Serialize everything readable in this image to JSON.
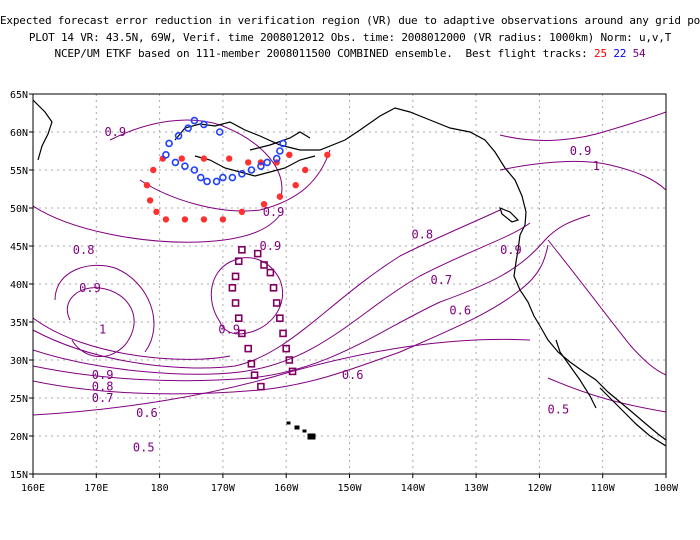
{
  "header": {
    "line1": "Expected forecast error reduction in verification region (VR) due to adaptive observations around any grid point.",
    "line2": "PLOT 14 VR: 43.5N, 69W, Verif. time 2008012012 Obs. time: 2008012000 (VR radius: 1000km) Norm: u,v,T",
    "line3_prefix": "NCEP/UM ETKF based on 111-member 2008011500 COMBINED ensemble.  Best flight tracks:",
    "track_red": "25",
    "track_blue": "22",
    "track_purple": "54"
  },
  "map": {
    "lat_labels": [
      "65N",
      "60N",
      "55N",
      "50N",
      "45N",
      "40N",
      "35N",
      "30N",
      "25N",
      "20N",
      "15N"
    ],
    "lat_values": [
      65,
      60,
      55,
      50,
      45,
      40,
      35,
      30,
      25,
      20,
      15
    ],
    "lon_labels": [
      "160E",
      "170E",
      "180",
      "170W",
      "160W",
      "150W",
      "140W",
      "130W",
      "120W",
      "110W",
      "100W"
    ],
    "lon_values": [
      160,
      170,
      180,
      190,
      200,
      210,
      220,
      230,
      240,
      250,
      260
    ],
    "lat_range": [
      15,
      65
    ],
    "lon_range": [
      160,
      260
    ],
    "grid": true,
    "contour_labels": [
      {
        "text": "0.9",
        "lon": 173,
        "lat": 60
      },
      {
        "text": "0.9",
        "lon": 246.5,
        "lat": 57.5
      },
      {
        "text": "1",
        "lon": 249,
        "lat": 55.5
      },
      {
        "text": "0.9",
        "lon": 198,
        "lat": 49.5
      },
      {
        "text": "0.8",
        "lon": 168,
        "lat": 44.5
      },
      {
        "text": "0.9",
        "lon": 197.5,
        "lat": 45
      },
      {
        "text": "0.8",
        "lon": 221.5,
        "lat": 46.5
      },
      {
        "text": "0.9",
        "lon": 235.5,
        "lat": 44.5
      },
      {
        "text": "0.9",
        "lon": 169,
        "lat": 39.5
      },
      {
        "text": "0.7",
        "lon": 224.5,
        "lat": 40.5
      },
      {
        "text": "1",
        "lon": 171,
        "lat": 34
      },
      {
        "text": "0.6",
        "lon": 227.5,
        "lat": 36.5
      },
      {
        "text": "0.9",
        "lon": 191,
        "lat": 34
      },
      {
        "text": "0.9",
        "lon": 171,
        "lat": 28
      },
      {
        "text": "0.8",
        "lon": 171,
        "lat": 26.5
      },
      {
        "text": "0.7",
        "lon": 171,
        "lat": 25
      },
      {
        "text": "0.6",
        "lon": 210.5,
        "lat": 28
      },
      {
        "text": "0.6",
        "lon": 178,
        "lat": 23
      },
      {
        "text": "0.5",
        "lon": 243,
        "lat": 23.5
      },
      {
        "text": "0.5",
        "lon": 177.5,
        "lat": 18.5
      }
    ],
    "colors": {
      "contour": "#800080",
      "track_red": "#ff3030",
      "track_blue": "#2040ff",
      "track_purple": "#800060",
      "coast": "#000000",
      "grid": "#aaaaaa"
    },
    "track_red_points": [
      [
        179,
        55
      ],
      [
        180.5,
        56.5
      ],
      [
        183.5,
        56.5
      ],
      [
        187,
        56.5
      ],
      [
        191,
        56.5
      ],
      [
        194,
        56
      ],
      [
        196,
        56
      ],
      [
        198.5,
        56
      ],
      [
        200.5,
        57
      ],
      [
        203,
        55
      ],
      [
        206.5,
        57
      ],
      [
        178,
        53
      ],
      [
        178.5,
        51
      ],
      [
        179.5,
        49.5
      ],
      [
        181,
        48.5
      ],
      [
        184,
        48.5
      ],
      [
        187,
        48.5
      ],
      [
        190,
        48.5
      ],
      [
        193,
        49.5
      ],
      [
        196.5,
        50.5
      ],
      [
        199,
        51.5
      ],
      [
        201.5,
        53
      ]
    ],
    "track_blue_points": [
      [
        183,
        59.5
      ],
      [
        184.5,
        60.5
      ],
      [
        185.5,
        61.5
      ],
      [
        187,
        61
      ],
      [
        189.5,
        60
      ],
      [
        181.5,
        58.5
      ],
      [
        181,
        57
      ],
      [
        182.5,
        56
      ],
      [
        184,
        55.5
      ],
      [
        185.5,
        55
      ],
      [
        186.5,
        54
      ],
      [
        187.5,
        53.5
      ],
      [
        189,
        53.5
      ],
      [
        190,
        54
      ],
      [
        191.5,
        54
      ],
      [
        193,
        54.5
      ],
      [
        194.5,
        55
      ],
      [
        196,
        55.5
      ],
      [
        197,
        56
      ],
      [
        198.5,
        56.5
      ],
      [
        199,
        57.5
      ],
      [
        199.5,
        58.5
      ]
    ],
    "track_purple_points": [
      [
        193,
        44.5
      ],
      [
        192.5,
        43
      ],
      [
        192,
        41
      ],
      [
        191.5,
        39.5
      ],
      [
        192,
        37.5
      ],
      [
        192.5,
        35.5
      ],
      [
        193,
        33.5
      ],
      [
        194,
        31.5
      ],
      [
        194.5,
        29.5
      ],
      [
        195,
        28
      ],
      [
        196,
        26.5
      ],
      [
        195.5,
        44
      ],
      [
        196.5,
        42.5
      ],
      [
        197.5,
        41.5
      ],
      [
        198,
        39.5
      ],
      [
        198.5,
        37.5
      ],
      [
        199,
        35.5
      ],
      [
        199.5,
        33.5
      ],
      [
        200,
        31.5
      ],
      [
        200.5,
        30
      ],
      [
        201,
        28.5
      ]
    ]
  }
}
